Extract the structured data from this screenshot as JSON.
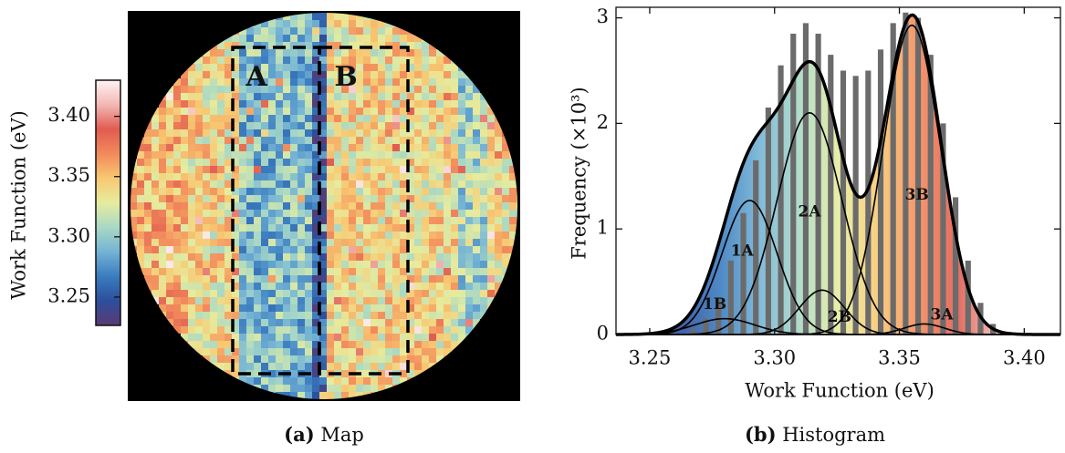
{
  "chart_data": [
    {
      "type": "map",
      "caption_label": "(a)",
      "caption": "Map",
      "colorbar_label": "Work Function (eV)",
      "colorbar_lim": [
        3.2265,
        3.43
      ],
      "colorbar_ticks": [
        3.25,
        {
          "value": 3.3,
          "label": "3.30"
        },
        3.35,
        {
          "value": 3.4,
          "label": "3.40"
        }
      ],
      "colormap": [
        "#5b3a74",
        "#2c4f9c",
        "#3a7cbf",
        "#74b3d5",
        "#a9d8c4",
        "#e6ec9e",
        "#f8c872",
        "#f28a5c",
        "#e05c50",
        "#f3b7b3",
        "#fdf4f4"
      ],
      "regions": [
        "A",
        "B"
      ]
    },
    {
      "type": "histogram",
      "caption_label": "(b)",
      "caption": "Histogram",
      "xlabel": "Work Function (eV)",
      "ylabel": "Frequency (×10³)",
      "xlim": [
        3.2365,
        3.4145
      ],
      "ylim": [
        0,
        3.1
      ],
      "xticks": [
        3.25,
        {
          "value": 3.3,
          "label": "3.30"
        },
        3.35,
        {
          "value": 3.4,
          "label": "3.40"
        }
      ],
      "yticks": [
        0,
        1,
        2,
        3
      ],
      "bar_color": "#6b6b6b",
      "bins": [
        3.265,
        3.27,
        3.275,
        3.28,
        3.285,
        3.29,
        3.295,
        3.3,
        3.305,
        3.31,
        3.315,
        3.32,
        3.325,
        3.33,
        3.335,
        3.34,
        3.345,
        3.35,
        3.355,
        3.36,
        3.365,
        3.37,
        3.375,
        3.38,
        3.385,
        3.39
      ],
      "counts": [
        0.05,
        0.15,
        0.35,
        0.7,
        1.15,
        1.65,
        2.15,
        2.55,
        2.85,
        2.95,
        2.85,
        2.65,
        2.5,
        2.45,
        2.5,
        2.7,
        2.95,
        3.05,
        3.0,
        2.65,
        2.0,
        1.3,
        0.7,
        0.3,
        0.1
      ],
      "components": [
        {
          "name": "1A",
          "center": 3.29,
          "amplitude": 1.27,
          "sigma": 0.011
        },
        {
          "name": "1B",
          "center": 3.28,
          "amplitude": 0.15,
          "sigma": 0.012
        },
        {
          "name": "2A",
          "center": 3.314,
          "amplitude": 2.1,
          "sigma": 0.013
        },
        {
          "name": "2B",
          "center": 3.319,
          "amplitude": 0.42,
          "sigma": 0.009
        },
        {
          "name": "3A",
          "center": 3.36,
          "amplitude": 0.1,
          "sigma": 0.008
        },
        {
          "name": "3B",
          "center": 3.355,
          "amplitude": 2.93,
          "sigma": 0.0115
        }
      ]
    }
  ]
}
